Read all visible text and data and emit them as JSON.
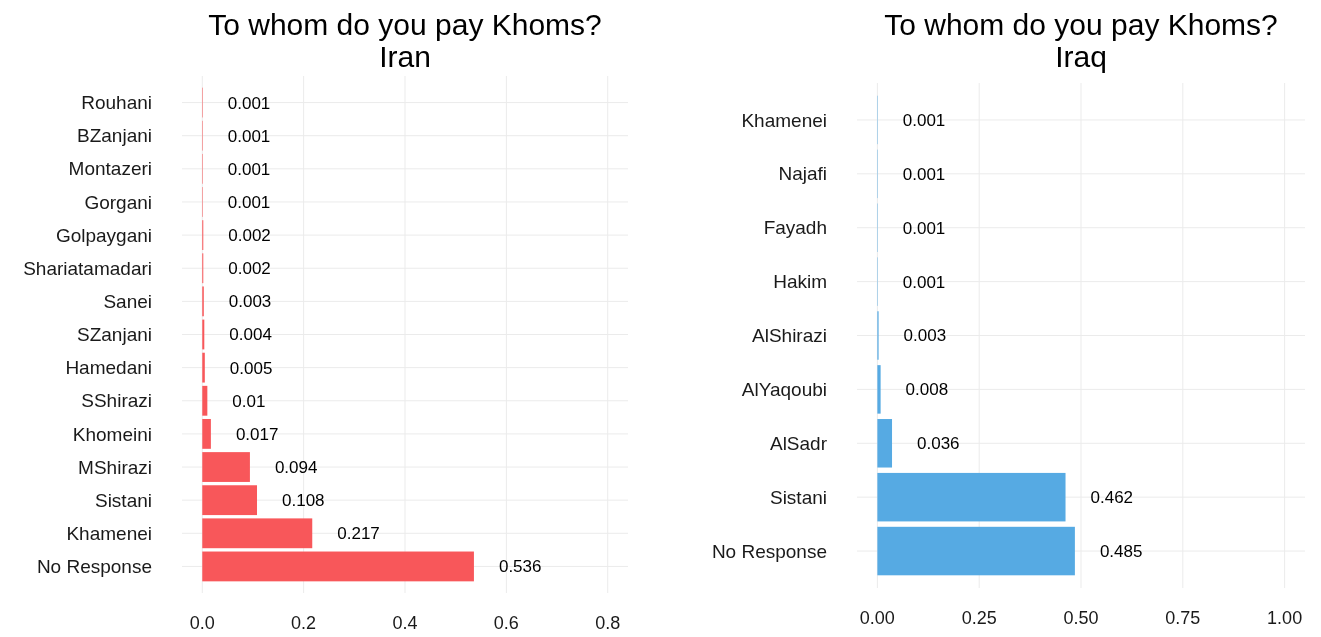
{
  "chart_data": [
    {
      "type": "bar",
      "orientation": "horizontal",
      "title": "To whom do you pay Khoms?\nIran",
      "categories": [
        "Rouhani",
        "BZanjani",
        "Montazeri",
        "Gorgani",
        "Golpaygani",
        "Shariatamadari",
        "Sanei",
        "SZanjani",
        "Hamedani",
        "SShirazi",
        "Khomeini",
        "MShirazi",
        "Sistani",
        "Khamenei",
        "No Response"
      ],
      "values": [
        0.001,
        0.001,
        0.001,
        0.001,
        0.002,
        0.002,
        0.003,
        0.004,
        0.005,
        0.01,
        0.017,
        0.094,
        0.108,
        0.217,
        0.536
      ],
      "color": "#f8575a",
      "xlim": [
        -0.04,
        0.84
      ],
      "xticks": [
        {
          "value": 0,
          "label": "0.0"
        },
        {
          "value": 0.2,
          "label": "0.2"
        },
        {
          "value": 0.4,
          "label": "0.4"
        },
        {
          "value": 0.6,
          "label": "0.6"
        },
        {
          "value": 0.8,
          "label": "0.8"
        }
      ],
      "grid": true,
      "data_labels": true
    },
    {
      "type": "bar",
      "orientation": "horizontal",
      "title": "To whom do you pay Khoms?\nIraq",
      "categories": [
        "Khamenei",
        "Najafi",
        "Fayadh",
        "Hakim",
        "AlShirazi",
        "AlYaqoubi",
        "AlSadr",
        "Sistani",
        "No Response"
      ],
      "values": [
        0.001,
        0.001,
        0.001,
        0.001,
        0.003,
        0.008,
        0.036,
        0.462,
        0.485
      ],
      "color": "#56aae3",
      "xlim": [
        -0.05,
        1.05
      ],
      "xticks": [
        {
          "value": 0,
          "label": "0.00"
        },
        {
          "value": 0.25,
          "label": "0.25"
        },
        {
          "value": 0.5,
          "label": "0.50"
        },
        {
          "value": 0.75,
          "label": "0.75"
        },
        {
          "value": 1,
          "label": "1.00"
        }
      ],
      "grid": true,
      "data_labels": true
    }
  ]
}
